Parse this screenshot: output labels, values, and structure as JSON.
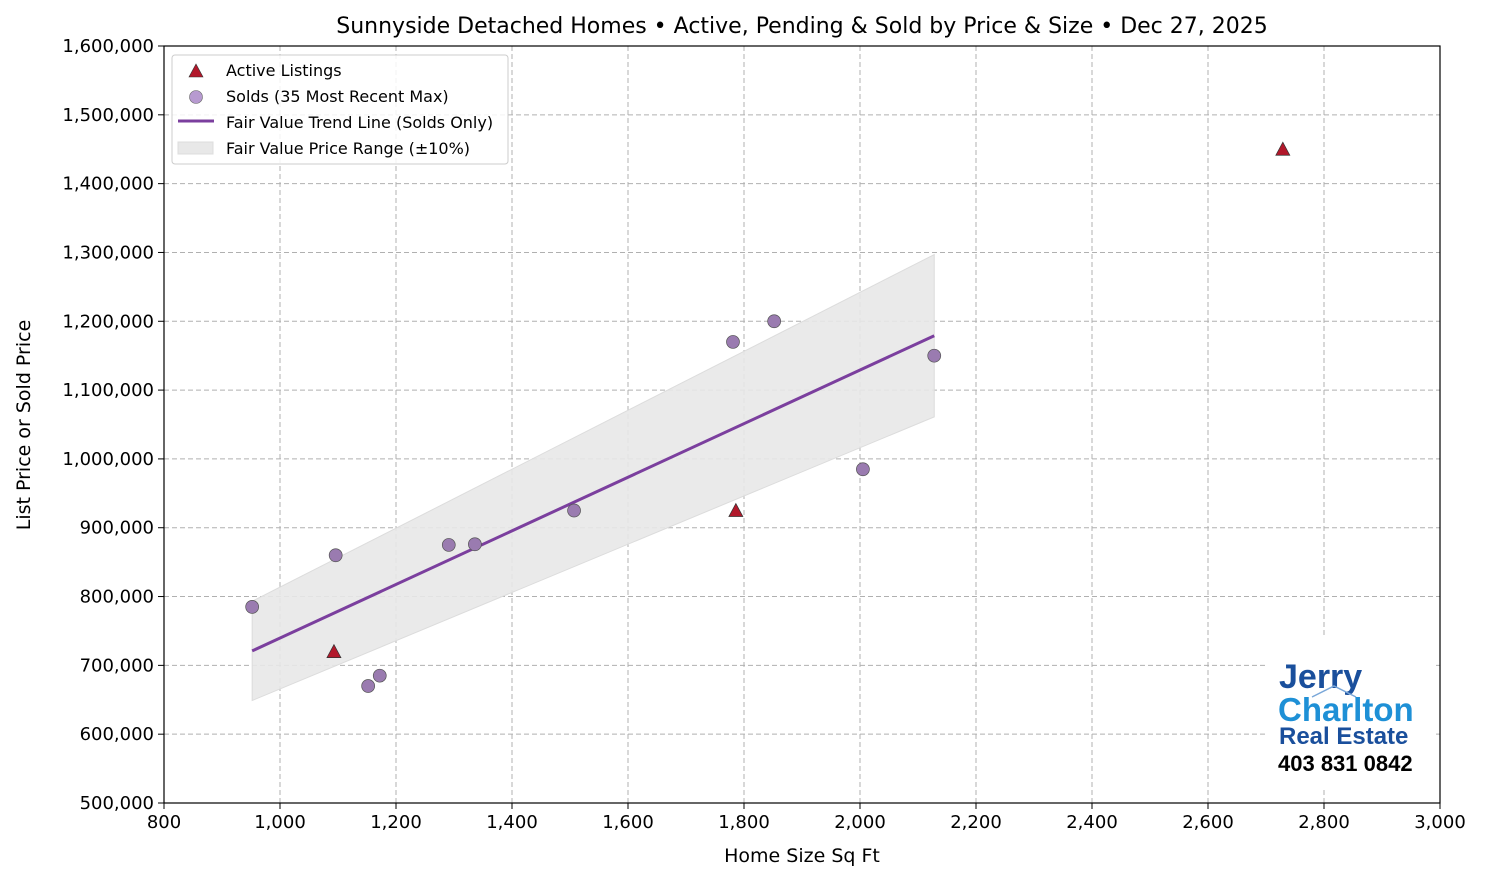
{
  "chart_data": {
    "type": "scatter",
    "title": "Sunnyside Detached Homes • Active, Pending & Sold by Price & Size • Dec 27, 2025",
    "xlabel": "Home Size Sq Ft",
    "ylabel": "List Price or Sold Price",
    "xlim": [
      800,
      3000
    ],
    "ylim": [
      500000,
      1600000
    ],
    "xticks": [
      800,
      1000,
      1200,
      1400,
      1600,
      1800,
      2000,
      2200,
      2400,
      2600,
      2800,
      3000
    ],
    "xtick_labels": [
      "800",
      "1,000",
      "1,200",
      "1,400",
      "1,600",
      "1,800",
      "2,000",
      "2,200",
      "2,400",
      "2,600",
      "2,800",
      "3,000"
    ],
    "yticks": [
      500000,
      600000,
      700000,
      800000,
      900000,
      1000000,
      1100000,
      1200000,
      1300000,
      1400000,
      1500000,
      1600000
    ],
    "ytick_labels": [
      "500,000",
      "600,000",
      "700,000",
      "800,000",
      "900,000",
      "1,000,000",
      "1,100,000",
      "1,200,000",
      "1,300,000",
      "1,400,000",
      "1,500,000",
      "1,600,000"
    ],
    "grid": true,
    "legend_position": "top-left",
    "series": [
      {
        "name": "Active Listings",
        "marker": "triangle",
        "color": "#b2182b",
        "points": [
          [
            1093,
            720000
          ],
          [
            1786,
            925000
          ],
          [
            2729,
            1450000
          ]
        ]
      },
      {
        "name": "Solds (35 Most Recent Max)",
        "marker": "circle",
        "color": "#9a7bb0",
        "points": [
          [
            952,
            785000
          ],
          [
            1096,
            860000
          ],
          [
            1152,
            670000
          ],
          [
            1172,
            685000
          ],
          [
            1291,
            875000
          ],
          [
            1336,
            876000
          ],
          [
            1507,
            925000
          ],
          [
            1781,
            1170000
          ],
          [
            1852,
            1200000
          ],
          [
            2005,
            985000
          ],
          [
            2128,
            1150000
          ]
        ]
      },
      {
        "name": "Fair Value Trend Line (Solds Only)",
        "type": "line",
        "color": "#7b3f9e",
        "points": [
          [
            952,
            721000
          ],
          [
            2128,
            1179000
          ]
        ]
      },
      {
        "name": "Fair Value Price Range (±10%)",
        "type": "band",
        "color": "#e8e8e8",
        "band_pct": 10
      }
    ]
  },
  "logo": {
    "line1": "Jerry",
    "line2": "Charlton",
    "line3": "Real Estate",
    "phone": "403 831 0842",
    "colors": {
      "dark_blue": "#1a4f9c",
      "light_blue": "#1e90d6"
    }
  }
}
